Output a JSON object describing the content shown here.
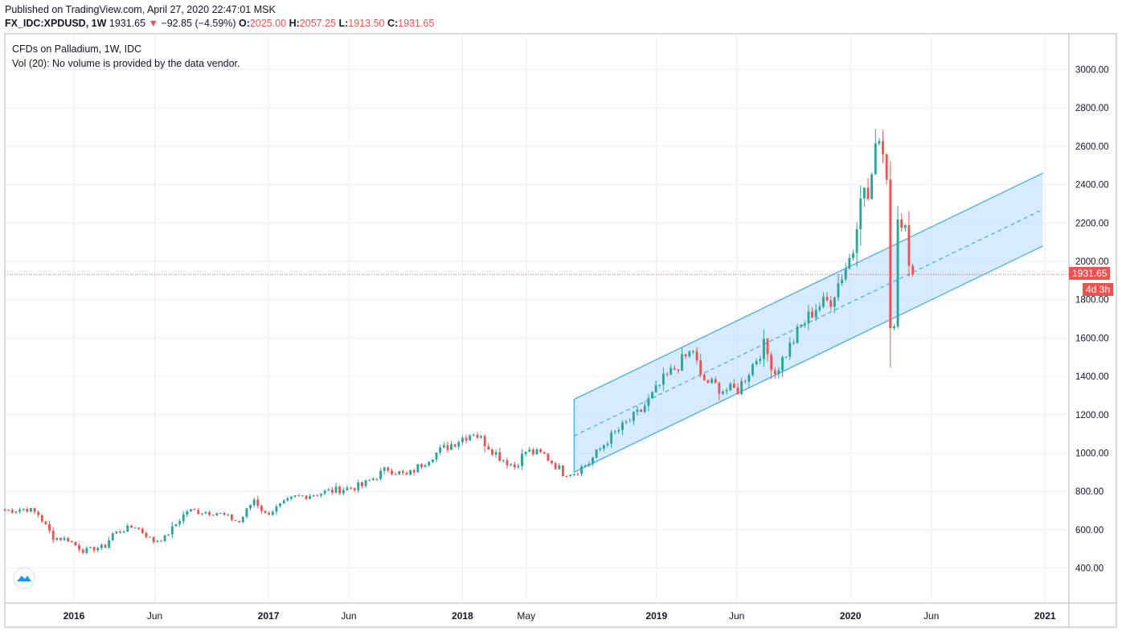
{
  "header": {
    "published": "Published on TradingView.com, April 27, 2020 22:47:01 MSK",
    "symbol": "FX_IDC:XPDUSD, 1W",
    "last": "1931.65",
    "change_arrow": "▼",
    "change": "−92.85 (−4.59%)",
    "o_label": "O:",
    "o_value": "2025.00",
    "h_label": "H:",
    "h_value": "2057.25",
    "l_label": "L:",
    "l_value": "1913.50",
    "c_label": "C:",
    "c_value": "1931.65"
  },
  "legend": {
    "title": "CFDs on Palladium, 1W, IDC",
    "volume_note": "Vol (20): No volume is provided by the data vendor."
  },
  "price_badge": "1931.65",
  "countdown_badge": "4d 3h",
  "colors": {
    "up": "#26a69a",
    "down": "#ef5350",
    "channel": "#42a5f5",
    "channel_fill": "#bbdefb",
    "grid": "#e9eef3",
    "price_line": "#ef5350"
  },
  "icons": {
    "logo": "tradingview-logo-icon"
  },
  "chart_data": {
    "type": "candlestick",
    "y_axis_side": "right",
    "ylim": [
      200,
      3200
    ],
    "y_ticks": [
      "400.00",
      "600.00",
      "800.00",
      "1000.00",
      "1200.00",
      "1400.00",
      "1600.00",
      "1800.00",
      "2000.00",
      "2200.00",
      "2400.00",
      "2600.00",
      "2800.00",
      "3000.00"
    ],
    "x_ticks": [
      {
        "label": "2016",
        "date": "2016-01-01",
        "bold": true
      },
      {
        "label": "Jun",
        "date": "2016-06-01",
        "bold": false
      },
      {
        "label": "2017",
        "date": "2017-01-01",
        "bold": true
      },
      {
        "label": "Jun",
        "date": "2017-06-01",
        "bold": false
      },
      {
        "label": "2018",
        "date": "2018-01-01",
        "bold": true
      },
      {
        "label": "May",
        "date": "2018-05-01",
        "bold": false
      },
      {
        "label": "2019",
        "date": "2019-01-01",
        "bold": true
      },
      {
        "label": "Jun",
        "date": "2019-06-01",
        "bold": false
      },
      {
        "label": "2020",
        "date": "2020-01-01",
        "bold": true
      },
      {
        "label": "Jun",
        "date": "2020-06-01",
        "bold": false
      },
      {
        "label": "2021",
        "date": "2021-01-01",
        "bold": true
      }
    ],
    "xlim": [
      "2015-08-24",
      "2021-02-15"
    ],
    "current_price": 1931.65,
    "channel": {
      "start_date": "2018-07-30",
      "end_date": "2020-12-28",
      "upper": [
        1280,
        2460
      ],
      "middle": [
        1090,
        2270
      ],
      "lower": [
        900,
        2080
      ]
    },
    "anchors": [
      {
        "date": "2015-08-24",
        "price": 700
      },
      {
        "date": "2015-10-05",
        "price": 710
      },
      {
        "date": "2015-10-26",
        "price": 680
      },
      {
        "date": "2015-11-23",
        "price": 560
      },
      {
        "date": "2015-12-21",
        "price": 550
      },
      {
        "date": "2016-01-18",
        "price": 490
      },
      {
        "date": "2016-02-29",
        "price": 515
      },
      {
        "date": "2016-03-14",
        "price": 580
      },
      {
        "date": "2016-04-25",
        "price": 620
      },
      {
        "date": "2016-05-30",
        "price": 540
      },
      {
        "date": "2016-06-20",
        "price": 560
      },
      {
        "date": "2016-08-01",
        "price": 700
      },
      {
        "date": "2016-09-26",
        "price": 690
      },
      {
        "date": "2016-11-07",
        "price": 640
      },
      {
        "date": "2016-12-05",
        "price": 760
      },
      {
        "date": "2016-12-26",
        "price": 680
      },
      {
        "date": "2017-02-20",
        "price": 770
      },
      {
        "date": "2017-04-24",
        "price": 800
      },
      {
        "date": "2017-06-26",
        "price": 830
      },
      {
        "date": "2017-08-14",
        "price": 920
      },
      {
        "date": "2017-09-18",
        "price": 880
      },
      {
        "date": "2017-11-06",
        "price": 990
      },
      {
        "date": "2018-01-01",
        "price": 1080
      },
      {
        "date": "2018-01-22",
        "price": 1110
      },
      {
        "date": "2018-03-12",
        "price": 980
      },
      {
        "date": "2018-04-09",
        "price": 930
      },
      {
        "date": "2018-04-30",
        "price": 1010
      },
      {
        "date": "2018-06-04",
        "price": 990
      },
      {
        "date": "2018-07-09",
        "price": 900
      },
      {
        "date": "2018-07-30",
        "price": 900
      },
      {
        "date": "2018-08-27",
        "price": 950
      },
      {
        "date": "2018-10-01",
        "price": 1070
      },
      {
        "date": "2018-12-03",
        "price": 1220
      },
      {
        "date": "2019-01-14",
        "price": 1380
      },
      {
        "date": "2019-03-11",
        "price": 1540
      },
      {
        "date": "2019-03-25",
        "price": 1390
      },
      {
        "date": "2019-05-06",
        "price": 1330
      },
      {
        "date": "2019-06-03",
        "price": 1330
      },
      {
        "date": "2019-07-22",
        "price": 1560
      },
      {
        "date": "2019-08-12",
        "price": 1420
      },
      {
        "date": "2019-09-30",
        "price": 1660
      },
      {
        "date": "2019-10-28",
        "price": 1760
      },
      {
        "date": "2019-11-25",
        "price": 1800
      },
      {
        "date": "2020-01-06",
        "price": 2060
      },
      {
        "date": "2020-01-20",
        "price": 2380
      },
      {
        "date": "2020-02-03",
        "price": 2330
      },
      {
        "date": "2020-02-24",
        "price": 2680
      },
      {
        "date": "2020-03-09",
        "price": 2460
      },
      {
        "date": "2020-03-16",
        "price": 1660
      },
      {
        "date": "2020-03-23",
        "price": 1700
      },
      {
        "date": "2020-03-30",
        "price": 2260
      },
      {
        "date": "2020-04-06",
        "price": 2150
      },
      {
        "date": "2020-04-13",
        "price": 2150
      },
      {
        "date": "2020-04-20",
        "price": 2025
      },
      {
        "date": "2020-04-27",
        "price": 1931.65
      }
    ]
  }
}
